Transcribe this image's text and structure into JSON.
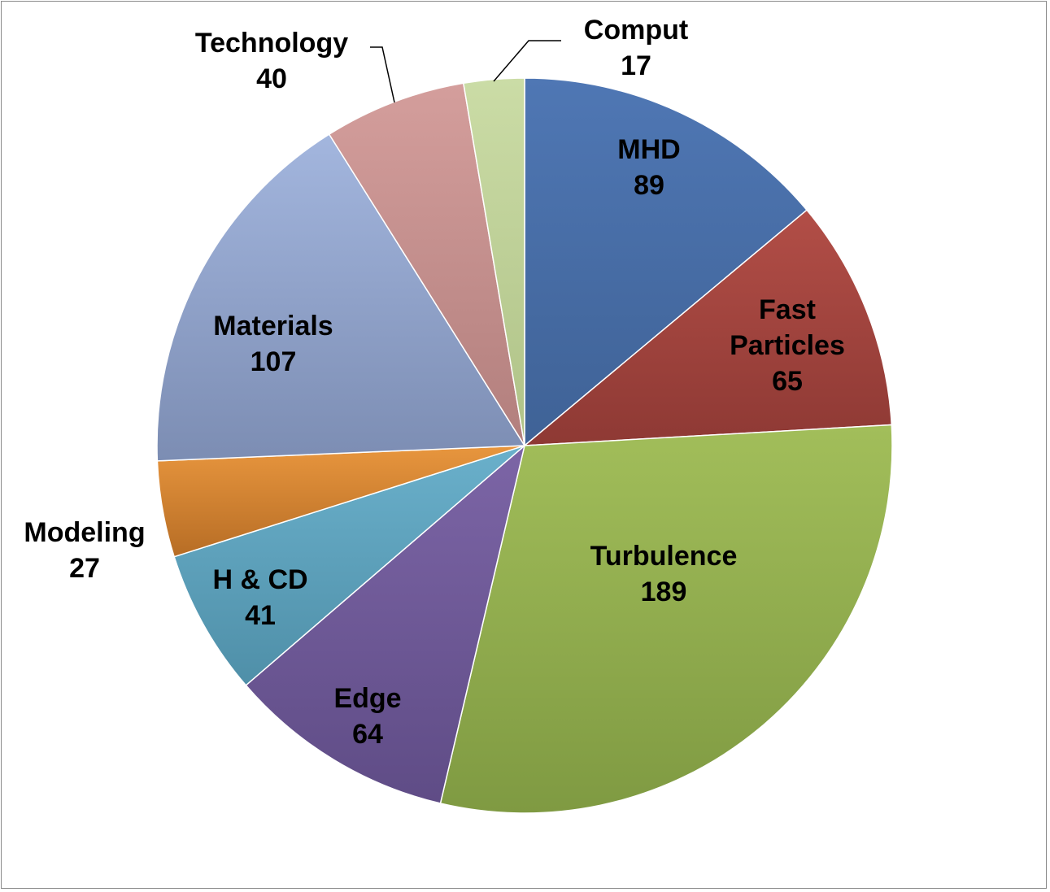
{
  "chart_data": {
    "type": "pie",
    "title": "",
    "start_angle_deg": 0,
    "direction": "clockwise",
    "slices": [
      {
        "label": "MHD",
        "label_lines": [
          "MHD"
        ],
        "value": 89,
        "color": "#4F77B4",
        "color_dark": "#3F6296"
      },
      {
        "label": "Fast Particles",
        "label_lines": [
          "Fast",
          "Particles"
        ],
        "value": 65,
        "color": "#B24E47",
        "color_dark": "#8E3934"
      },
      {
        "label": "Turbulence",
        "label_lines": [
          "Turbulence"
        ],
        "value": 189,
        "color": "#A2BE5A",
        "color_dark": "#7F9A42"
      },
      {
        "label": "Edge",
        "label_lines": [
          "Edge"
        ],
        "value": 64,
        "color": "#7C65A6",
        "color_dark": "#5F4C86"
      },
      {
        "label": "H & CD",
        "label_lines": [
          "H & CD"
        ],
        "value": 41,
        "color": "#6AB0CB",
        "color_dark": "#4F8FA8"
      },
      {
        "label": "Modeling",
        "label_lines": [
          "Modeling"
        ],
        "value": 27,
        "color": "#E8963E",
        "color_dark": "#B76D25"
      },
      {
        "label": "Materials",
        "label_lines": [
          "Materials"
        ],
        "value": 107,
        "color": "#A3B6DE",
        "color_dark": "#7C8DB3"
      },
      {
        "label": "Technology",
        "label_lines": [
          "Technology"
        ],
        "value": 40,
        "color": "#D49E9C",
        "color_dark": "#B27F7D"
      },
      {
        "label": "Comput",
        "label_lines": [
          "Comput"
        ],
        "value": 17,
        "color": "#CBDCA6",
        "color_dark": "#AFC287"
      }
    ]
  }
}
